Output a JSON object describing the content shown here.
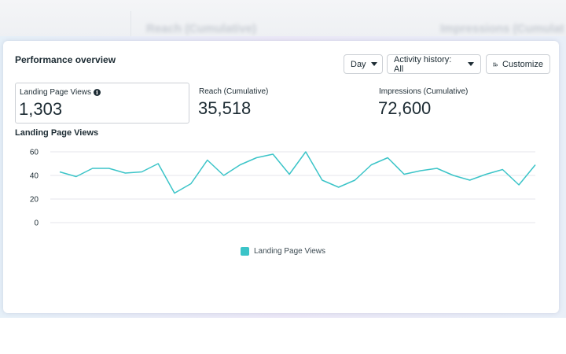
{
  "background": {
    "left_text": "Reach (Cumulative)",
    "right_text": "Impressions (Cumulat"
  },
  "card": {
    "title": "Performance overview"
  },
  "toolbar": {
    "day_label": "Day",
    "activity_label": "Activity history: All",
    "customize_label": "Customize"
  },
  "metrics": [
    {
      "label": "Landing Page Views",
      "value": "1,303"
    },
    {
      "label": "Reach (Cumulative)",
      "value": "35,518"
    },
    {
      "label": "Impressions (Cumulative)",
      "value": "72,600"
    }
  ],
  "colors": {
    "series": "#3bc4c8",
    "grid": "#e4e6eb",
    "text": "#1c2b33"
  },
  "chart_data": {
    "type": "line",
    "title": "Landing Page Views",
    "xlabel": "",
    "ylabel": "",
    "ylim": [
      0,
      60
    ],
    "yticks": [
      0,
      20,
      40,
      60
    ],
    "grid": true,
    "legend_position": "bottom-center",
    "series": [
      {
        "name": "Landing Page Views",
        "values": [
          43,
          39,
          46,
          46,
          42,
          43,
          50,
          25,
          33,
          53,
          40,
          49,
          55,
          58,
          41,
          60,
          36,
          30,
          36,
          49,
          55,
          41,
          44,
          46,
          40,
          36,
          41,
          45,
          32,
          49
        ]
      }
    ]
  }
}
